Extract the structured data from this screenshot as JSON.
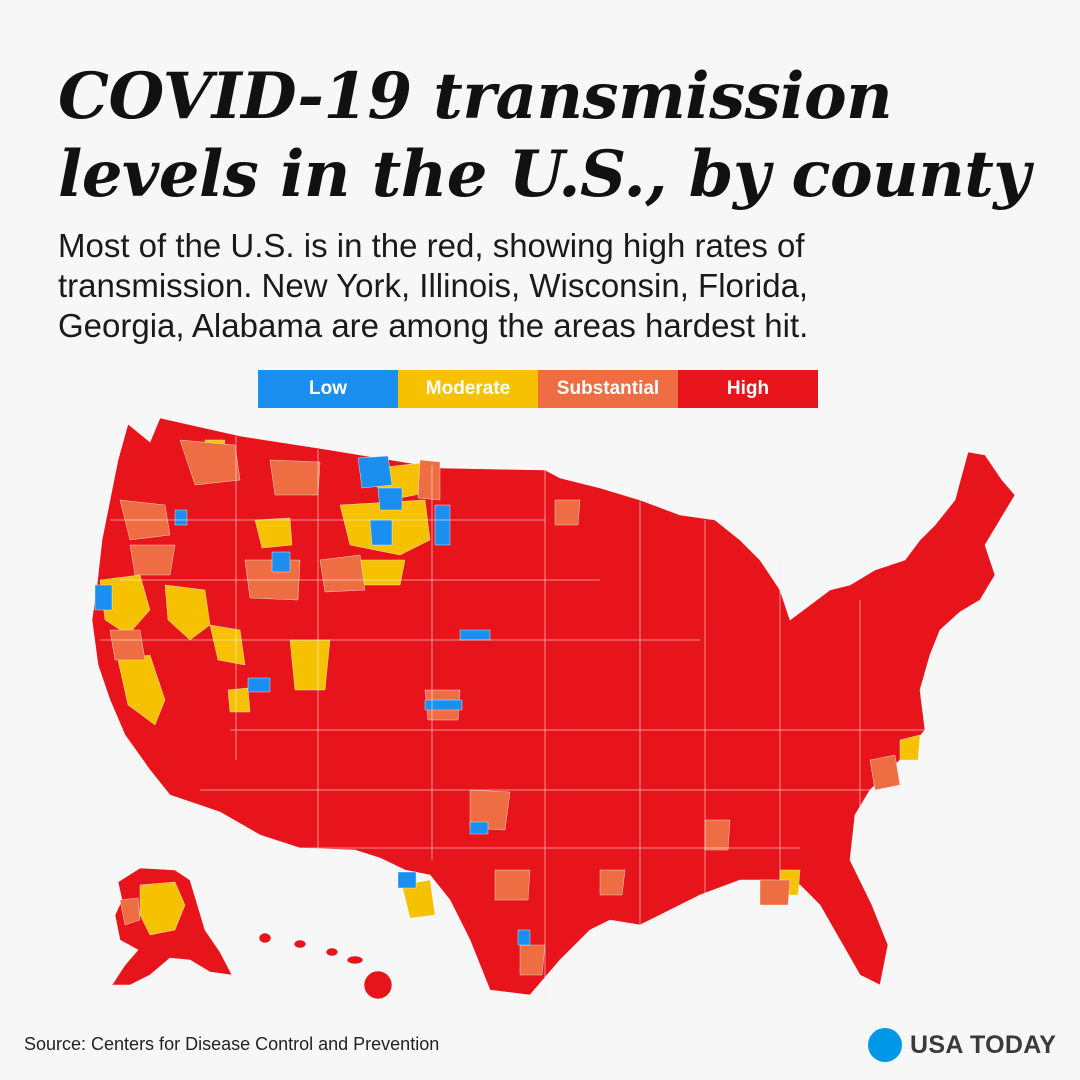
{
  "title": {
    "line1": "COVID-19 transmission",
    "line2": "levels in the U.S., by county"
  },
  "subtitle": {
    "line1": "Most of the U.S. is in the red, showing high rates of",
    "line2": "transmission. New York, Illinois, Wisconsin, Florida,",
    "line3": "Georgia, Alabama are among the areas hardest hit."
  },
  "legend": [
    {
      "label": "Low",
      "color": "#1a8ff0"
    },
    {
      "label": "Moderate",
      "color": "#f6c200"
    },
    {
      "label": "Substantial",
      "color": "#ef6d42"
    },
    {
      "label": "High",
      "color": "#e8141c"
    }
  ],
  "colors": {
    "low": "#1a8ff0",
    "moderate": "#f6c200",
    "substantial": "#ef6d42",
    "high": "#e8141c",
    "border": "#f5f5f5"
  },
  "footer": {
    "source": "Source: Centers for Disease Control and Prevention",
    "brand": "USA TODAY"
  }
}
